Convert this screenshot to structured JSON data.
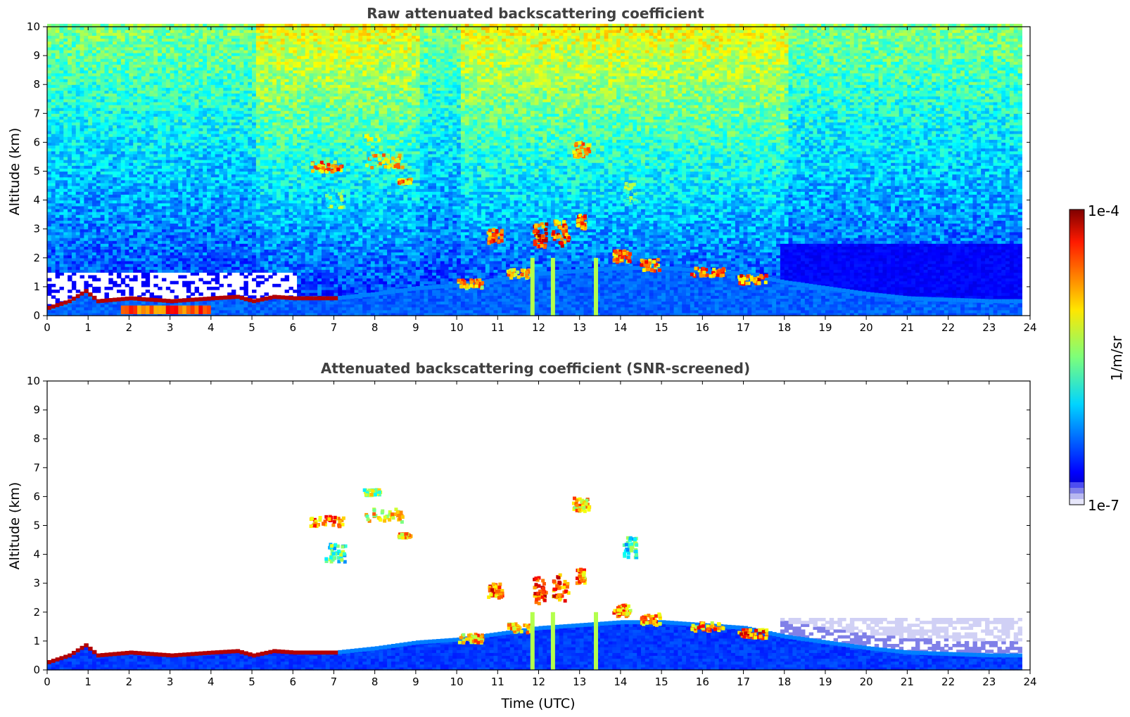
{
  "chart_data": [
    {
      "type": "heatmap",
      "id": "raw",
      "title": "Raw attenuated backscattering coefficient",
      "xlabel": "",
      "ylabel": "Altitude (km)",
      "xlim": [
        0,
        24
      ],
      "ylim": [
        0,
        10
      ],
      "xticks": [
        0,
        1,
        2,
        3,
        4,
        5,
        6,
        7,
        8,
        9,
        10,
        11,
        12,
        13,
        14,
        15,
        16,
        17,
        18,
        19,
        20,
        21,
        22,
        23,
        24
      ],
      "yticks": [
        0,
        1,
        2,
        3,
        4,
        5,
        6,
        7,
        8,
        9,
        10
      ],
      "screened": false,
      "data_end_time": 23.8,
      "features": {
        "boundary_layer_top": [
          [
            0,
            0.22
          ],
          [
            0.5,
            0.45
          ],
          [
            0.9,
            0.8
          ],
          [
            1.2,
            0.45
          ],
          [
            2,
            0.55
          ],
          [
            3,
            0.45
          ],
          [
            4,
            0.55
          ],
          [
            4.6,
            0.6
          ],
          [
            5,
            0.45
          ],
          [
            5.5,
            0.6
          ],
          [
            6,
            0.55
          ],
          [
            7,
            0.55
          ],
          [
            8,
            0.7
          ],
          [
            9,
            0.9
          ],
          [
            10,
            1.0
          ],
          [
            11,
            1.2
          ],
          [
            12,
            1.4
          ],
          [
            13,
            1.5
          ],
          [
            14,
            1.6
          ],
          [
            15,
            1.6
          ],
          [
            16,
            1.5
          ],
          [
            17,
            1.4
          ],
          [
            18,
            1.1
          ],
          [
            19,
            0.9
          ],
          [
            20,
            0.7
          ],
          [
            21,
            0.55
          ],
          [
            22,
            0.5
          ],
          [
            23,
            0.45
          ],
          [
            23.8,
            0.45
          ]
        ],
        "cloud_patches": [
          {
            "t": 6.8,
            "z": 5.2,
            "dt": 0.8,
            "dz": 0.35,
            "level": 0.9
          },
          {
            "t": 8.2,
            "z": 5.4,
            "dt": 0.9,
            "dz": 0.45,
            "level": 0.8
          },
          {
            "t": 7.9,
            "z": 6.2,
            "dt": 0.4,
            "dz": 0.2,
            "level": 0.7
          },
          {
            "t": 7.0,
            "z": 4.1,
            "dt": 0.5,
            "dz": 0.6,
            "level": 0.6
          },
          {
            "t": 8.7,
            "z": 4.7,
            "dt": 0.3,
            "dz": 0.15,
            "level": 0.85
          },
          {
            "t": 10.9,
            "z": 2.8,
            "dt": 0.35,
            "dz": 0.5,
            "level": 0.95
          },
          {
            "t": 12.0,
            "z": 2.8,
            "dt": 0.3,
            "dz": 0.9,
            "level": 1.0
          },
          {
            "t": 12.5,
            "z": 2.9,
            "dt": 0.4,
            "dz": 0.9,
            "level": 0.95
          },
          {
            "t": 13.0,
            "z": 5.8,
            "dt": 0.4,
            "dz": 0.5,
            "level": 0.85
          },
          {
            "t": 13.0,
            "z": 3.3,
            "dt": 0.2,
            "dz": 0.5,
            "level": 0.9
          },
          {
            "t": 14.2,
            "z": 4.3,
            "dt": 0.3,
            "dz": 0.7,
            "level": 0.6
          },
          {
            "t": 14.0,
            "z": 2.1,
            "dt": 0.4,
            "dz": 0.4,
            "level": 0.9
          },
          {
            "t": 14.7,
            "z": 1.8,
            "dt": 0.5,
            "dz": 0.4,
            "level": 0.9
          },
          {
            "t": 16.1,
            "z": 1.55,
            "dt": 0.8,
            "dz": 0.3,
            "level": 0.9
          },
          {
            "t": 17.2,
            "z": 1.3,
            "dt": 0.7,
            "dz": 0.3,
            "level": 0.95
          },
          {
            "t": 10.3,
            "z": 1.15,
            "dt": 0.6,
            "dz": 0.3,
            "level": 0.85
          },
          {
            "t": 11.5,
            "z": 1.5,
            "dt": 0.6,
            "dz": 0.3,
            "level": 0.85
          }
        ],
        "precip_columns": [
          11.85,
          12.35,
          13.4
        ]
      }
    },
    {
      "type": "heatmap",
      "id": "screened",
      "title": "Attenuated backscattering coefficient (SNR-screened)",
      "xlabel": "Time (UTC)",
      "ylabel": "Altitude (km)",
      "xlim": [
        0,
        24
      ],
      "ylim": [
        0,
        10
      ],
      "xticks": [
        0,
        1,
        2,
        3,
        4,
        5,
        6,
        7,
        8,
        9,
        10,
        11,
        12,
        13,
        14,
        15,
        16,
        17,
        18,
        19,
        20,
        21,
        22,
        23,
        24
      ],
      "yticks": [
        0,
        1,
        2,
        3,
        4,
        5,
        6,
        7,
        8,
        9,
        10
      ],
      "screened": true,
      "data_end_time": 23.8
    }
  ],
  "colorbar": {
    "max_label": "1e-4",
    "min_label": "1e-7",
    "label": "1/m/sr",
    "colormap": "jet",
    "low_end_colors": [
      "#e6e6fa",
      "#b8b8f0",
      "#8080e8",
      "#4d4df0"
    ]
  }
}
